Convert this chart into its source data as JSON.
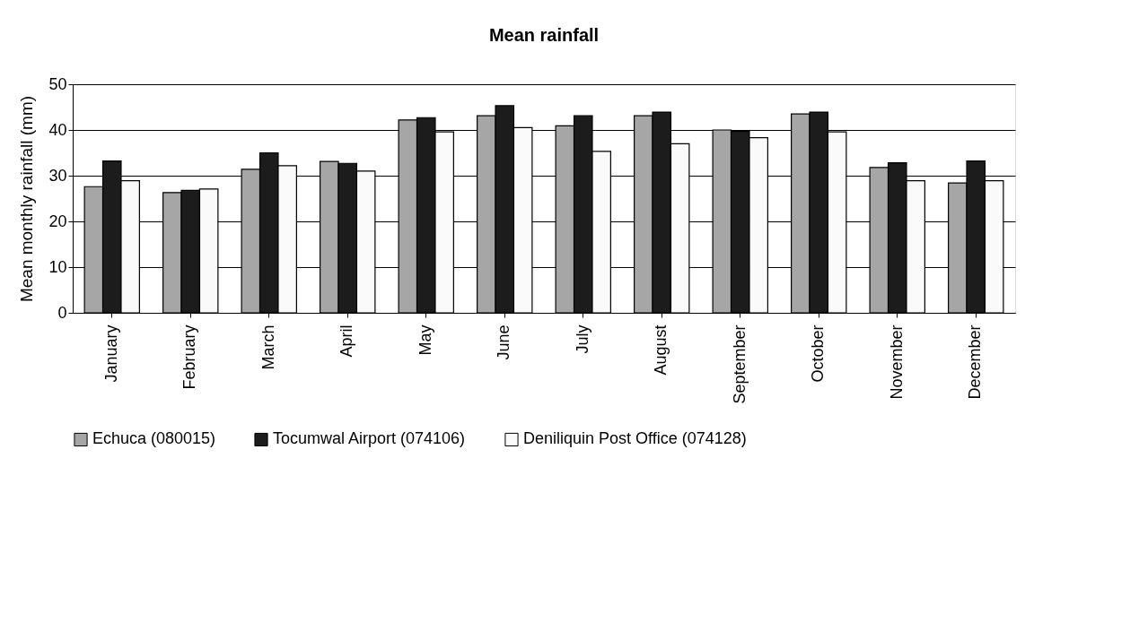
{
  "chart_data": {
    "type": "bar",
    "title": "Mean rainfall",
    "ylabel": "Mean monthly rainfall (mm)",
    "categories": [
      "January",
      "February",
      "March",
      "April",
      "May",
      "June",
      "July",
      "August",
      "September",
      "October",
      "November",
      "December"
    ],
    "series": [
      {
        "name": "Echuca (080015)",
        "color": "#a6a6a6",
        "values": [
          27.6,
          26.3,
          31.4,
          33.1,
          42.2,
          43.1,
          40.9,
          43.1,
          40.0,
          43.5,
          31.8,
          28.4
        ]
      },
      {
        "name": "Tocumwal Airport (074106)",
        "color": "#1c1c1c",
        "values": [
          33.2,
          26.8,
          35.0,
          32.7,
          42.7,
          45.3,
          43.1,
          43.9,
          39.7,
          43.9,
          32.8,
          33.2
        ]
      },
      {
        "name": "Deniliquin Post Office (074128)",
        "color": "#fafafa",
        "values": [
          28.9,
          27.1,
          32.2,
          31.0,
          39.6,
          40.5,
          35.3,
          37.0,
          38.3,
          39.6,
          28.9,
          28.9
        ]
      }
    ],
    "ylim": [
      0,
      50
    ],
    "yticks": [
      0,
      10,
      20,
      30,
      40,
      50
    ],
    "grid": "y",
    "legend": "bottom"
  }
}
